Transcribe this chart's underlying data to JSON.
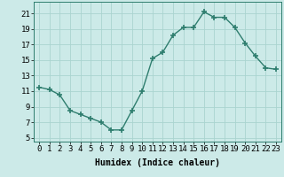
{
  "x": [
    0,
    1,
    2,
    3,
    4,
    5,
    6,
    7,
    8,
    9,
    10,
    11,
    12,
    13,
    14,
    15,
    16,
    17,
    18,
    19,
    20,
    21,
    22,
    23
  ],
  "y": [
    11.5,
    11.2,
    10.5,
    8.5,
    8.0,
    7.5,
    7.0,
    6.0,
    6.0,
    8.5,
    11.0,
    15.2,
    16.0,
    18.2,
    19.2,
    19.2,
    21.2,
    20.5,
    20.5,
    19.2,
    17.2,
    15.5,
    14.0,
    13.8
  ],
  "line_color": "#2e7d6e",
  "marker": "+",
  "markersize": 4,
  "linewidth": 1.0,
  "bg_color": "#cceae8",
  "grid_color": "#aad4d0",
  "xlabel": "Humidex (Indice chaleur)",
  "ylabel_ticks": [
    5,
    7,
    9,
    11,
    13,
    15,
    17,
    19,
    21
  ],
  "xtick_labels": [
    "0",
    "1",
    "2",
    "3",
    "4",
    "5",
    "6",
    "7",
    "8",
    "9",
    "10",
    "11",
    "12",
    "13",
    "14",
    "15",
    "16",
    "17",
    "18",
    "19",
    "20",
    "21",
    "22",
    "23"
  ],
  "ylim": [
    4.5,
    22.5
  ],
  "xlim": [
    -0.5,
    23.5
  ],
  "xlabel_fontsize": 7,
  "tick_fontsize": 6.5
}
